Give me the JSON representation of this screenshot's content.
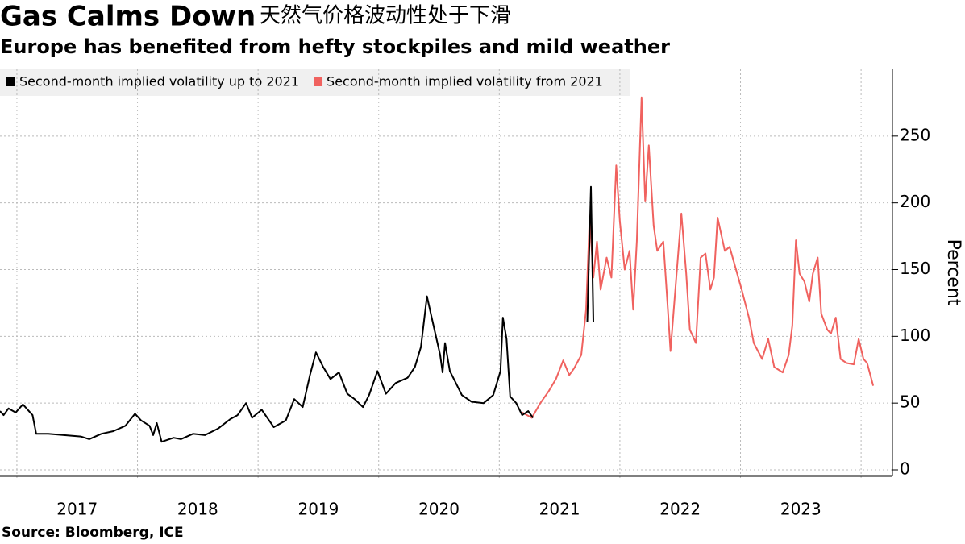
{
  "chart_data": {
    "type": "line",
    "title": "Gas Calms Down",
    "subtitle": "天然气价格波动性处于下滑",
    "description": "Europe has benefited from hefty stockpiles and mild weather",
    "y_label": "Percent",
    "source": "Source: Bloomberg, ICE",
    "xlim": [
      2016.86,
      2024.26
    ],
    "xticks": [
      {
        "value": 2017.5,
        "label": "2017"
      },
      {
        "value": 2018.5,
        "label": "2018"
      },
      {
        "value": 2019.5,
        "label": "2019"
      },
      {
        "value": 2020.5,
        "label": "2020"
      },
      {
        "value": 2021.5,
        "label": "2021"
      },
      {
        "value": 2022.5,
        "label": "2022"
      },
      {
        "value": 2023.5,
        "label": "2023"
      }
    ],
    "xgrid": [
      2017,
      2018,
      2019,
      2020,
      2021,
      2022,
      2023,
      2024
    ],
    "ylim": [
      0,
      300
    ],
    "yticks": [
      0,
      50,
      100,
      150,
      200,
      250
    ],
    "grid": true,
    "series": [
      {
        "name": "Second-month implied volatility up to 2021",
        "color": "#000000",
        "x": [
          2016.86,
          2016.89,
          2016.93,
          2016.99,
          2017.05,
          2017.09,
          2017.13,
          2017.16,
          2017.26,
          2017.39,
          2017.53,
          2017.6,
          2017.7,
          2017.8,
          2017.9,
          2017.98,
          2018.03,
          2018.1,
          2018.13,
          2018.16,
          2018.2,
          2018.3,
          2018.36,
          2018.46,
          2018.56,
          2018.67,
          2018.77,
          2018.83,
          2018.9,
          2018.95,
          2019.03,
          2019.13,
          2019.23,
          2019.3,
          2019.37,
          2019.43,
          2019.48,
          2019.54,
          2019.6,
          2019.67,
          2019.74,
          2019.8,
          2019.87,
          2019.92,
          2019.99,
          2020.06,
          2020.14,
          2020.24,
          2020.3,
          2020.35,
          2020.4,
          2020.44,
          2020.47,
          2020.51,
          2020.53,
          2020.55,
          2020.59,
          2020.64,
          2020.69,
          2020.77,
          2020.87,
          2020.95,
          2021.01,
          2021.03,
          2021.06,
          2021.09,
          2021.14,
          2021.19,
          2021.24,
          2021.28,
          2021.5,
          2021.73,
          2021.76,
          2021.78
        ],
        "values": [
          44,
          41,
          46,
          43,
          49,
          45,
          41,
          27,
          27,
          26,
          25,
          23,
          27,
          29,
          33,
          42,
          37,
          33,
          26,
          35,
          21,
          24,
          23,
          27,
          26,
          31,
          38,
          41,
          50,
          39,
          45,
          32,
          37,
          53,
          47,
          71,
          88,
          77,
          68,
          73,
          57,
          53,
          47,
          56,
          74,
          57,
          65,
          69,
          77,
          92,
          130,
          114,
          102,
          86,
          73,
          95,
          74,
          65,
          56,
          51,
          50,
          56,
          74,
          114,
          98,
          55,
          50,
          41,
          44,
          39,
          null,
          111,
          212,
          111
        ]
      },
      {
        "name": "Second-month implied volatility from 2021",
        "color": "#f0625f",
        "x": [
          2021.19,
          2021.27,
          2021.34,
          2021.41,
          2021.47,
          2021.53,
          2021.58,
          2021.62,
          2021.68,
          2021.72,
          2021.75,
          2021.78,
          2021.81,
          2021.84,
          2021.89,
          2021.93,
          2021.97,
          2022.0,
          2022.04,
          2022.08,
          2022.11,
          2022.14,
          2022.18,
          2022.21,
          2022.24,
          2022.28,
          2022.31,
          2022.36,
          2022.4,
          2022.42,
          2022.46,
          2022.51,
          2022.55,
          2022.58,
          2022.63,
          2022.67,
          2022.71,
          2022.75,
          2022.78,
          2022.81,
          2022.87,
          2022.91,
          2022.96,
          2023.01,
          2023.07,
          2023.11,
          2023.18,
          2023.23,
          2023.28,
          2023.35,
          2023.4,
          2023.43,
          2023.46,
          2023.49,
          2023.53,
          2023.57,
          2023.6,
          2023.64,
          2023.67,
          2023.72,
          2023.75,
          2023.79,
          2023.83,
          2023.88,
          2023.94,
          2023.98,
          2024.02,
          2024.05,
          2024.1
        ],
        "values": [
          43,
          39,
          50,
          59,
          68,
          82,
          71,
          76,
          86,
          120,
          190,
          144,
          171,
          135,
          159,
          144,
          228,
          186,
          150,
          164,
          120,
          171,
          279,
          201,
          243,
          183,
          164,
          171,
          117,
          89,
          135,
          192,
          147,
          105,
          95,
          159,
          162,
          135,
          144,
          189,
          164,
          167,
          151,
          135,
          114,
          95,
          83,
          98,
          77,
          73,
          86,
          108,
          172,
          147,
          141,
          126,
          147,
          159,
          117,
          105,
          102,
          114,
          83,
          80,
          79,
          98,
          83,
          80,
          63
        ]
      }
    ]
  }
}
